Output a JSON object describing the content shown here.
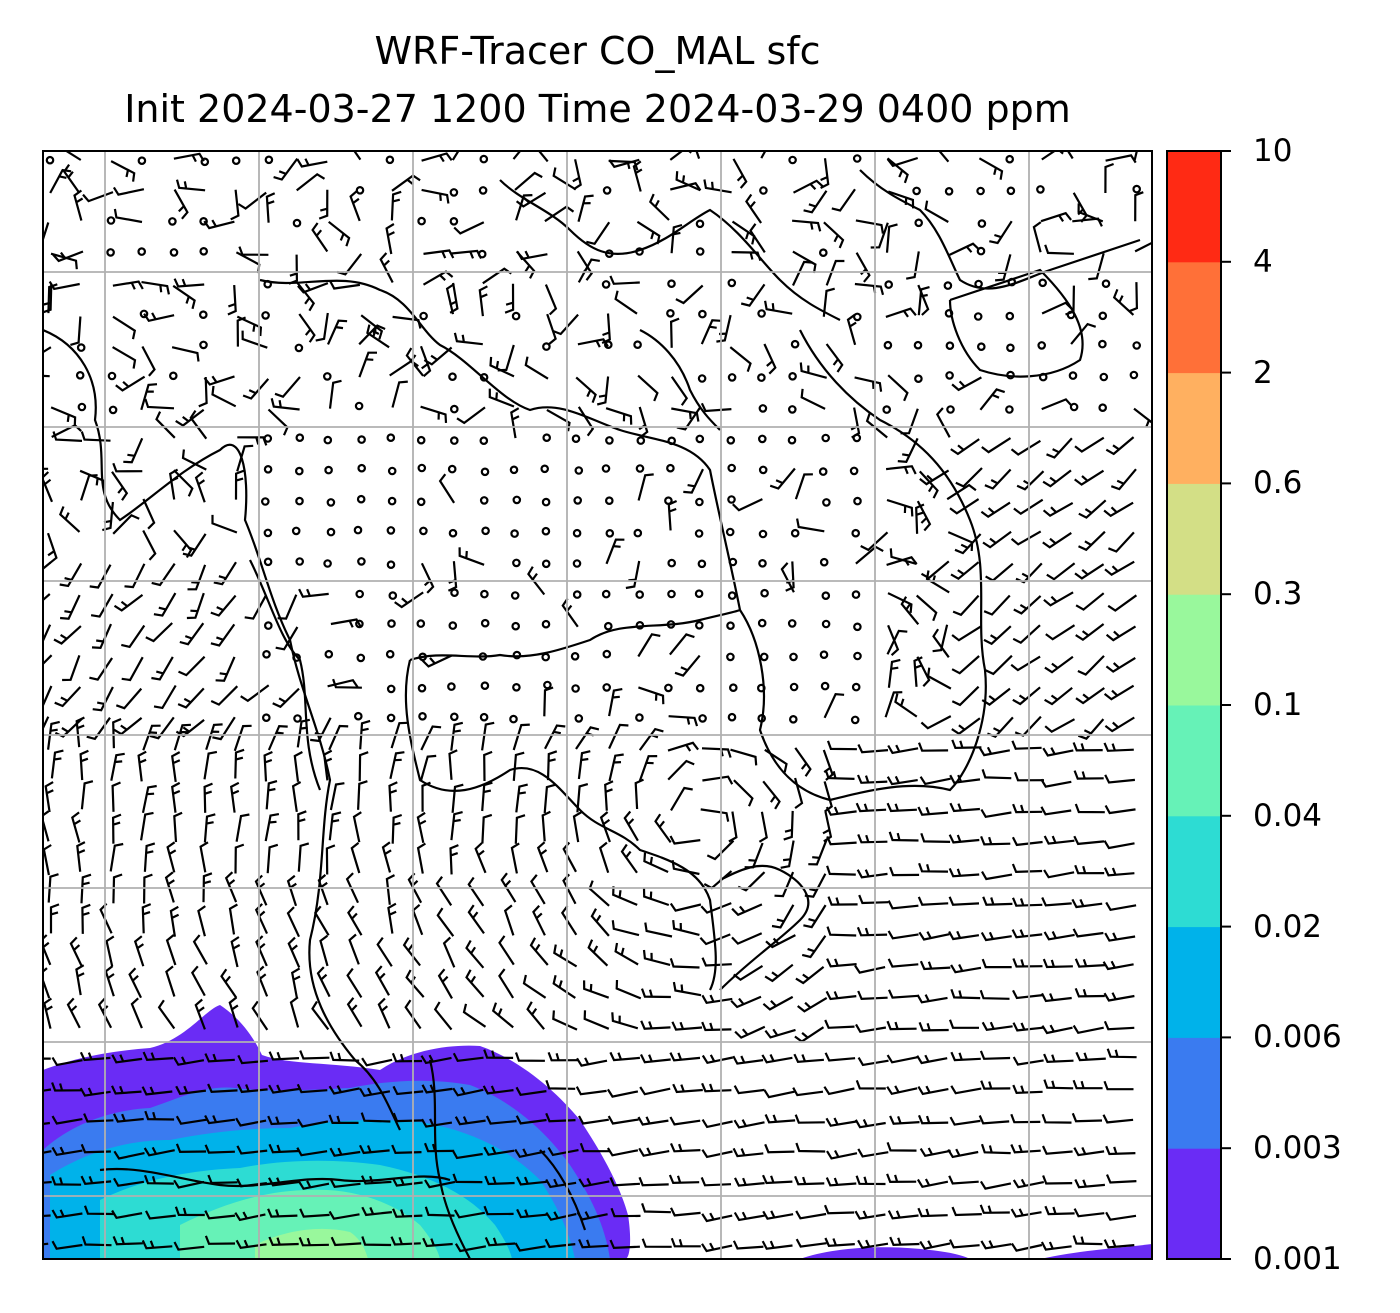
{
  "title": {
    "line1": "WRF-Tracer CO_MAL sfc",
    "line2": "Init 2024-03-27 1200 Time 2024-03-29 0400 ppm"
  },
  "map": {
    "field": "CO_MAL surface tracer concentration",
    "units": "ppm",
    "overlay": "surface wind barbs",
    "gridlines": true,
    "colormap": "rainbow"
  },
  "colorbar": {
    "labels": [
      "0.001",
      "0.003",
      "0.006",
      "0.02",
      "0.04",
      "0.1",
      "0.3",
      "0.6",
      "2",
      "4",
      "10"
    ],
    "colors": [
      "#6a2cf5",
      "#3a7bf0",
      "#00b2ea",
      "#2ddcd3",
      "#66f2b7",
      "#99f89c",
      "#d3df86",
      "#ffb060",
      "#ff7038",
      "#ff2a14"
    ]
  },
  "colors": {
    "gridline": "#b0b0b0",
    "coast": "#000000",
    "barb": "#000000"
  }
}
